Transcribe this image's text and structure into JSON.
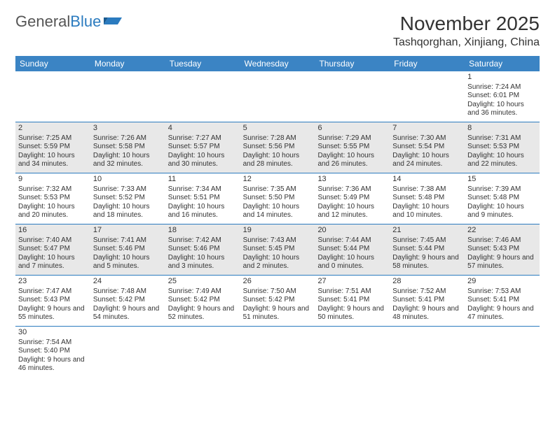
{
  "brand": {
    "part1": "General",
    "part2": "Blue"
  },
  "title": "November 2025",
  "location": "Tashqorghan, Xinjiang, China",
  "colors": {
    "header_bg": "#3b84c4",
    "header_text": "#ffffff",
    "rule": "#2b7bbf",
    "shaded_bg": "#e8e8e8",
    "text": "#333333"
  },
  "weekdays": [
    "Sunday",
    "Monday",
    "Tuesday",
    "Wednesday",
    "Thursday",
    "Friday",
    "Saturday"
  ],
  "weeks": [
    [
      null,
      null,
      null,
      null,
      null,
      null,
      {
        "n": "1",
        "sr": "7:24 AM",
        "ss": "6:01 PM",
        "dl": "10 hours and 36 minutes."
      }
    ],
    [
      {
        "n": "2",
        "sr": "7:25 AM",
        "ss": "5:59 PM",
        "dl": "10 hours and 34 minutes.",
        "shaded": true
      },
      {
        "n": "3",
        "sr": "7:26 AM",
        "ss": "5:58 PM",
        "dl": "10 hours and 32 minutes.",
        "shaded": true
      },
      {
        "n": "4",
        "sr": "7:27 AM",
        "ss": "5:57 PM",
        "dl": "10 hours and 30 minutes.",
        "shaded": true
      },
      {
        "n": "5",
        "sr": "7:28 AM",
        "ss": "5:56 PM",
        "dl": "10 hours and 28 minutes.",
        "shaded": true
      },
      {
        "n": "6",
        "sr": "7:29 AM",
        "ss": "5:55 PM",
        "dl": "10 hours and 26 minutes.",
        "shaded": true
      },
      {
        "n": "7",
        "sr": "7:30 AM",
        "ss": "5:54 PM",
        "dl": "10 hours and 24 minutes.",
        "shaded": true
      },
      {
        "n": "8",
        "sr": "7:31 AM",
        "ss": "5:53 PM",
        "dl": "10 hours and 22 minutes.",
        "shaded": true
      }
    ],
    [
      {
        "n": "9",
        "sr": "7:32 AM",
        "ss": "5:53 PM",
        "dl": "10 hours and 20 minutes."
      },
      {
        "n": "10",
        "sr": "7:33 AM",
        "ss": "5:52 PM",
        "dl": "10 hours and 18 minutes."
      },
      {
        "n": "11",
        "sr": "7:34 AM",
        "ss": "5:51 PM",
        "dl": "10 hours and 16 minutes."
      },
      {
        "n": "12",
        "sr": "7:35 AM",
        "ss": "5:50 PM",
        "dl": "10 hours and 14 minutes."
      },
      {
        "n": "13",
        "sr": "7:36 AM",
        "ss": "5:49 PM",
        "dl": "10 hours and 12 minutes."
      },
      {
        "n": "14",
        "sr": "7:38 AM",
        "ss": "5:48 PM",
        "dl": "10 hours and 10 minutes."
      },
      {
        "n": "15",
        "sr": "7:39 AM",
        "ss": "5:48 PM",
        "dl": "10 hours and 9 minutes."
      }
    ],
    [
      {
        "n": "16",
        "sr": "7:40 AM",
        "ss": "5:47 PM",
        "dl": "10 hours and 7 minutes.",
        "shaded": true
      },
      {
        "n": "17",
        "sr": "7:41 AM",
        "ss": "5:46 PM",
        "dl": "10 hours and 5 minutes.",
        "shaded": true
      },
      {
        "n": "18",
        "sr": "7:42 AM",
        "ss": "5:46 PM",
        "dl": "10 hours and 3 minutes.",
        "shaded": true
      },
      {
        "n": "19",
        "sr": "7:43 AM",
        "ss": "5:45 PM",
        "dl": "10 hours and 2 minutes.",
        "shaded": true
      },
      {
        "n": "20",
        "sr": "7:44 AM",
        "ss": "5:44 PM",
        "dl": "10 hours and 0 minutes.",
        "shaded": true
      },
      {
        "n": "21",
        "sr": "7:45 AM",
        "ss": "5:44 PM",
        "dl": "9 hours and 58 minutes.",
        "shaded": true
      },
      {
        "n": "22",
        "sr": "7:46 AM",
        "ss": "5:43 PM",
        "dl": "9 hours and 57 minutes.",
        "shaded": true
      }
    ],
    [
      {
        "n": "23",
        "sr": "7:47 AM",
        "ss": "5:43 PM",
        "dl": "9 hours and 55 minutes."
      },
      {
        "n": "24",
        "sr": "7:48 AM",
        "ss": "5:42 PM",
        "dl": "9 hours and 54 minutes."
      },
      {
        "n": "25",
        "sr": "7:49 AM",
        "ss": "5:42 PM",
        "dl": "9 hours and 52 minutes."
      },
      {
        "n": "26",
        "sr": "7:50 AM",
        "ss": "5:42 PM",
        "dl": "9 hours and 51 minutes."
      },
      {
        "n": "27",
        "sr": "7:51 AM",
        "ss": "5:41 PM",
        "dl": "9 hours and 50 minutes."
      },
      {
        "n": "28",
        "sr": "7:52 AM",
        "ss": "5:41 PM",
        "dl": "9 hours and 48 minutes."
      },
      {
        "n": "29",
        "sr": "7:53 AM",
        "ss": "5:41 PM",
        "dl": "9 hours and 47 minutes."
      }
    ],
    [
      {
        "n": "30",
        "sr": "7:54 AM",
        "ss": "5:40 PM",
        "dl": "9 hours and 46 minutes."
      },
      null,
      null,
      null,
      null,
      null,
      null
    ]
  ],
  "labels": {
    "sunrise": "Sunrise: ",
    "sunset": "Sunset: ",
    "daylight": "Daylight: "
  }
}
